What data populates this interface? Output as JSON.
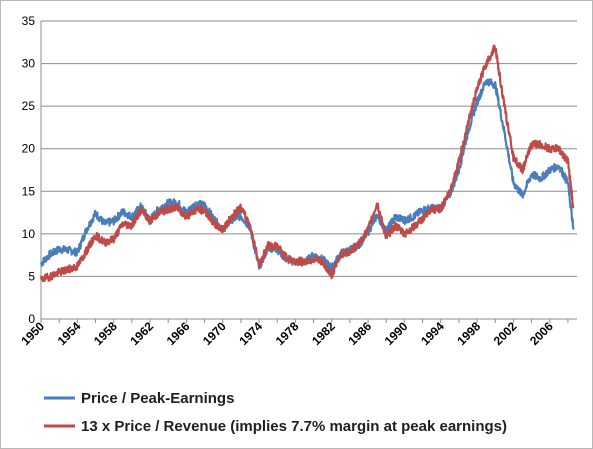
{
  "chart_data": {
    "type": "line",
    "title": "",
    "xlabel": "",
    "ylabel": "",
    "xlim": [
      1950,
      2009
    ],
    "ylim": [
      0,
      35
    ],
    "y_ticks": [
      "0",
      "5",
      "10",
      "15",
      "20",
      "25",
      "30",
      "35"
    ],
    "x_ticks": [
      "1950",
      "1954",
      "1958",
      "1962",
      "1966",
      "1970",
      "1974",
      "1978",
      "1982",
      "1986",
      "1990",
      "1994",
      "1998",
      "2002",
      "2006"
    ],
    "grid": "horizontal",
    "legend_position": "bottom",
    "series": [
      {
        "name": "Price / Peak-Earnings",
        "color": "#4a7ebb",
        "x": [
          1950,
          1951,
          1952,
          1953,
          1954,
          1955,
          1956,
          1957,
          1958,
          1959,
          1960,
          1961,
          1962,
          1963,
          1964,
          1965,
          1966,
          1967,
          1968,
          1969,
          1970,
          1971,
          1972,
          1973,
          1974,
          1975,
          1976,
          1977,
          1978,
          1979,
          1980,
          1981,
          1982,
          1983,
          1984,
          1985,
          1986,
          1987,
          1988,
          1989,
          1990,
          1991,
          1992,
          1993,
          1994,
          1995,
          1996,
          1997,
          1998,
          1999,
          2000,
          2001,
          2002,
          2003,
          2004,
          2005,
          2006,
          2007,
          2008,
          2008.6
        ],
        "y": [
          6.5,
          7.6,
          8.2,
          8.1,
          7.8,
          10.5,
          12.4,
          11.2,
          11.5,
          12.6,
          12.0,
          13.2,
          11.6,
          13.0,
          13.6,
          13.7,
          12.5,
          13.5,
          13.4,
          11.8,
          10.5,
          11.7,
          12.1,
          10.8,
          6.0,
          8.4,
          8.2,
          7.0,
          6.7,
          6.6,
          7.5,
          7.0,
          6.0,
          7.7,
          8.1,
          8.7,
          10.2,
          12.2,
          10.3,
          12.0,
          11.6,
          12.0,
          12.8,
          13.0,
          13.0,
          14.6,
          17.5,
          22.0,
          25.5,
          28.0,
          27.5,
          22.0,
          16.0,
          14.5,
          17.0,
          16.5,
          17.5,
          18.0,
          16.0,
          10.5
        ]
      },
      {
        "name": "13 x Price / Revenue (implies 7.7% margin at peak earnings)",
        "color": "#be4b48",
        "x": [
          1950,
          1951,
          1952,
          1953,
          1954,
          1955,
          1956,
          1957,
          1958,
          1959,
          1960,
          1961,
          1962,
          1963,
          1964,
          1965,
          1966,
          1967,
          1968,
          1969,
          1970,
          1971,
          1972,
          1973,
          1974,
          1975,
          1976,
          1977,
          1978,
          1979,
          1980,
          1981,
          1982,
          1983,
          1984,
          1985,
          1986,
          1987,
          1988,
          1989,
          1990,
          1991,
          1992,
          1993,
          1994,
          1995,
          1996,
          1997,
          1998,
          1999,
          2000,
          2001,
          2002,
          2003,
          2004,
          2005,
          2006,
          2007,
          2008,
          2008.6
        ],
        "y": [
          4.6,
          5.0,
          5.5,
          5.8,
          6.2,
          8.0,
          9.8,
          9.0,
          9.4,
          11.2,
          11.0,
          12.8,
          11.5,
          12.5,
          12.9,
          13.1,
          12.0,
          12.8,
          12.8,
          11.2,
          10.5,
          12.0,
          13.1,
          11.0,
          6.4,
          8.6,
          8.6,
          7.2,
          6.8,
          6.8,
          7.0,
          6.6,
          5.2,
          7.6,
          7.9,
          8.8,
          10.5,
          13.6,
          9.6,
          11.0,
          10.0,
          10.8,
          11.8,
          12.8,
          13.0,
          15.0,
          18.5,
          23.0,
          27.0,
          30.0,
          32.0,
          25.0,
          19.0,
          17.5,
          20.5,
          20.5,
          20.0,
          20.0,
          18.5,
          13.0
        ]
      }
    ]
  }
}
